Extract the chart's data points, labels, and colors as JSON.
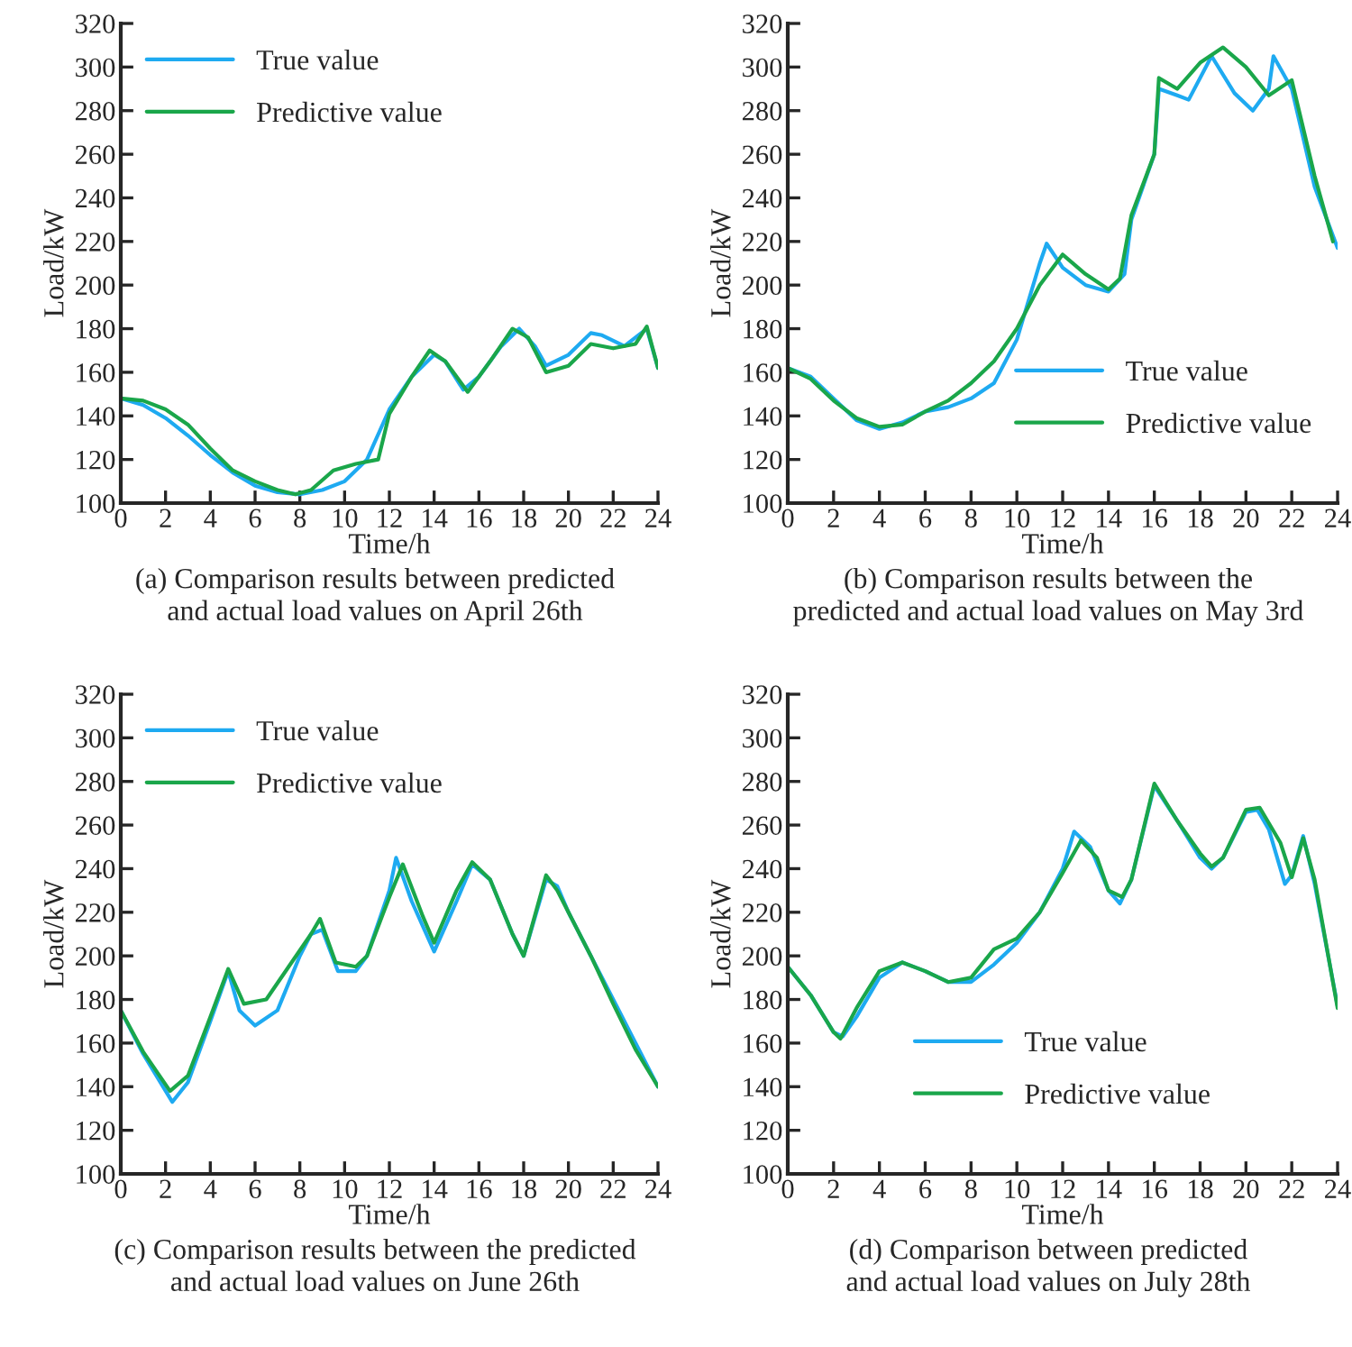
{
  "chart_data": [
    {
      "type": "line",
      "xlabel": "Time/h",
      "ylabel": "Load/kW",
      "xlim": [
        0,
        24
      ],
      "ylim": [
        100,
        320
      ],
      "xticks": [
        0,
        2,
        4,
        6,
        8,
        10,
        12,
        14,
        16,
        18,
        20,
        22,
        24
      ],
      "yticks": [
        100,
        120,
        140,
        160,
        180,
        200,
        220,
        240,
        260,
        280,
        300,
        320
      ],
      "grid": false,
      "legend": "top left",
      "line_style": "solid",
      "annotations": [
        "(a) Comparison results between predicted\nand actual load values on April 26th"
      ],
      "series": [
        {
          "name": "True value",
          "color": "#1eaaf1",
          "x": [
            0,
            1,
            2,
            3,
            4,
            5,
            6,
            7,
            8,
            9,
            10,
            11,
            12,
            13,
            14,
            14.5,
            15.3,
            16,
            17,
            17.8,
            18.5,
            19,
            20,
            21,
            21.5,
            22.5,
            23.5,
            24
          ],
          "values": [
            148,
            145,
            139,
            131,
            122,
            114,
            108,
            105,
            104,
            106,
            110,
            120,
            143,
            158,
            168,
            165,
            152,
            158,
            172,
            180,
            172,
            163,
            168,
            178,
            177,
            172,
            180,
            162
          ]
        },
        {
          "name": "Predictive value",
          "color": "#1aa64a",
          "x": [
            0,
            1,
            2,
            3,
            4,
            5,
            6,
            7,
            7.8,
            8.5,
            9.5,
            10.5,
            11.5,
            12,
            13,
            13.8,
            14.5,
            15.5,
            16.5,
            17.5,
            18.2,
            19,
            20,
            21,
            22,
            23,
            23.5,
            24
          ],
          "values": [
            148,
            147,
            143,
            136,
            125,
            115,
            110,
            106,
            104,
            106,
            115,
            118,
            120,
            141,
            158,
            170,
            165,
            151,
            165,
            180,
            176,
            160,
            163,
            173,
            171,
            173,
            181,
            162
          ]
        }
      ]
    },
    {
      "type": "line",
      "xlabel": "Time/h",
      "ylabel": "Load/kW",
      "xlim": [
        0,
        24
      ],
      "ylim": [
        100,
        320
      ],
      "xticks": [
        0,
        2,
        4,
        6,
        8,
        10,
        12,
        14,
        16,
        18,
        20,
        22,
        24
      ],
      "yticks": [
        100,
        120,
        140,
        160,
        180,
        200,
        220,
        240,
        260,
        280,
        300,
        320
      ],
      "grid": false,
      "legend": "bottom right",
      "line_style": "solid",
      "annotations": [
        "(b) Comparison results between the\npredicted and actual load values on May 3rd"
      ],
      "series": [
        {
          "name": "True value",
          "color": "#1eaaf1",
          "x": [
            0,
            1,
            2,
            3,
            4,
            5,
            6,
            7,
            8,
            9,
            10,
            11,
            11.3,
            12,
            13,
            14,
            14.7,
            15,
            16,
            16.2,
            17,
            17.5,
            18.5,
            19.5,
            20.3,
            21,
            21.2,
            22,
            23,
            24
          ],
          "values": [
            162,
            158,
            148,
            138,
            134,
            137,
            142,
            144,
            148,
            155,
            175,
            210,
            219,
            208,
            200,
            197,
            205,
            230,
            260,
            290,
            287,
            285,
            305,
            288,
            280,
            290,
            305,
            290,
            245,
            217
          ]
        },
        {
          "name": "Predictive value",
          "color": "#1aa64a",
          "x": [
            0,
            1,
            2,
            3,
            4,
            5,
            6,
            7,
            8,
            9,
            10,
            11,
            12,
            13,
            14,
            14.5,
            15,
            16,
            16.2,
            17,
            18,
            19,
            20,
            21,
            22,
            23,
            23.8
          ],
          "values": [
            162,
            157,
            147,
            139,
            135,
            136,
            142,
            147,
            155,
            165,
            180,
            200,
            214,
            205,
            198,
            203,
            232,
            260,
            295,
            290,
            302,
            309,
            300,
            287,
            294,
            250,
            220
          ]
        }
      ]
    },
    {
      "type": "line",
      "xlabel": "Time/h",
      "ylabel": "Load/kW",
      "xlim": [
        0,
        24
      ],
      "ylim": [
        100,
        320
      ],
      "xticks": [
        0,
        2,
        4,
        6,
        8,
        10,
        12,
        14,
        16,
        18,
        20,
        22,
        24
      ],
      "yticks": [
        100,
        120,
        140,
        160,
        180,
        200,
        220,
        240,
        260,
        280,
        300,
        320
      ],
      "grid": false,
      "legend": "top left",
      "line_style": "solid",
      "annotations": [
        "(c) Comparison results between the predicted\nand actual load values on June 26th"
      ],
      "series": [
        {
          "name": "True value",
          "color": "#1eaaf1",
          "x": [
            0,
            1,
            2.3,
            3,
            4,
            4.8,
            5.3,
            6,
            7,
            8,
            8.5,
            9,
            9.7,
            10.5,
            11,
            12,
            12.3,
            13,
            14,
            15,
            15.7,
            16.5,
            17.5,
            18,
            19,
            19.5,
            20,
            21,
            22,
            23,
            24
          ],
          "values": [
            175,
            155,
            133,
            142,
            170,
            193,
            175,
            168,
            175,
            200,
            210,
            212,
            193,
            193,
            200,
            230,
            245,
            225,
            202,
            225,
            242,
            235,
            210,
            200,
            235,
            232,
            220,
            200,
            180,
            160,
            140
          ]
        },
        {
          "name": "Predictive value",
          "color": "#1aa64a",
          "x": [
            0,
            1,
            2.2,
            3,
            4,
            4.8,
            5.5,
            6.5,
            7.5,
            8.5,
            8.9,
            9.6,
            10.5,
            11,
            12,
            12.6,
            13.5,
            14,
            15,
            15.7,
            16.5,
            17.5,
            18,
            19,
            19.5,
            20,
            21,
            22,
            23,
            24
          ],
          "values": [
            175,
            156,
            138,
            145,
            172,
            194,
            178,
            180,
            195,
            210,
            217,
            197,
            195,
            200,
            227,
            242,
            218,
            206,
            230,
            243,
            235,
            210,
            200,
            237,
            230,
            220,
            200,
            178,
            157,
            140
          ]
        }
      ]
    },
    {
      "type": "line",
      "xlabel": "Time/h",
      "ylabel": "Load/kW",
      "xlim": [
        0,
        24
      ],
      "ylim": [
        100,
        320
      ],
      "xticks": [
        0,
        2,
        4,
        6,
        8,
        10,
        12,
        14,
        16,
        18,
        20,
        22,
        24
      ],
      "yticks": [
        100,
        120,
        140,
        160,
        180,
        200,
        220,
        240,
        260,
        280,
        300,
        320
      ],
      "grid": false,
      "legend": "bottom",
      "line_style": "solid",
      "annotations": [
        "(d) Comparison between predicted\nand actual load values on July 28th"
      ],
      "series": [
        {
          "name": "True value",
          "color": "#1eaaf1",
          "x": [
            0,
            1,
            2,
            2.4,
            3,
            4,
            5,
            6,
            7,
            8,
            9,
            10,
            11,
            12,
            12.5,
            13.2,
            14,
            14.5,
            15,
            16,
            17,
            18,
            18.5,
            19,
            20,
            20.5,
            21,
            21.7,
            22,
            22.5,
            23,
            24
          ],
          "values": [
            195,
            182,
            165,
            163,
            172,
            190,
            197,
            193,
            188,
            188,
            196,
            206,
            220,
            240,
            257,
            250,
            230,
            224,
            235,
            278,
            262,
            245,
            240,
            245,
            266,
            267,
            258,
            233,
            237,
            255,
            233,
            177
          ]
        },
        {
          "name": "Predictive value",
          "color": "#1aa64a",
          "x": [
            0,
            1,
            2,
            2.3,
            3,
            4,
            5,
            6,
            7,
            8,
            9,
            10,
            11,
            12,
            12.8,
            13.5,
            14,
            14.6,
            15,
            16,
            17,
            18,
            18.5,
            19,
            20,
            20.6,
            21.5,
            22,
            22.5,
            23,
            24
          ],
          "values": [
            195,
            182,
            165,
            162,
            176,
            193,
            197,
            193,
            188,
            190,
            203,
            208,
            220,
            238,
            253,
            245,
            230,
            227,
            235,
            279,
            262,
            247,
            241,
            245,
            267,
            268,
            252,
            236,
            254,
            235,
            176
          ]
        }
      ]
    }
  ]
}
